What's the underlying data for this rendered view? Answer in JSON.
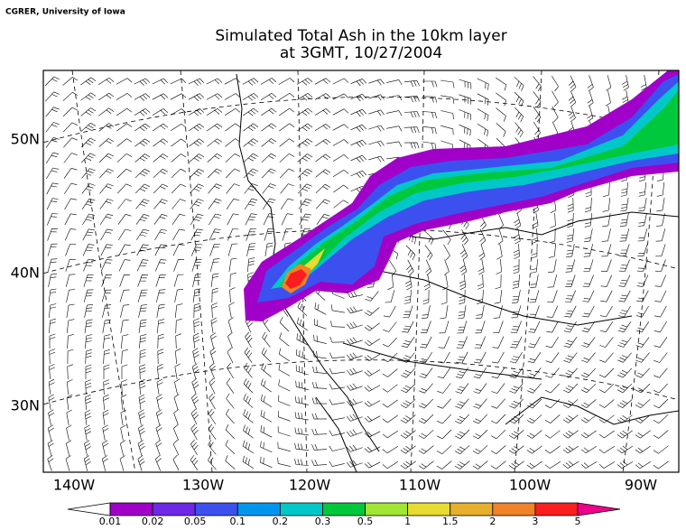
{
  "header": {
    "credit": "CGRER, University of Iowa",
    "title_line1": "Simulated Total Ash in the 10km layer",
    "title_line2": "at 3GMT, 10/27/2004"
  },
  "map": {
    "lat_labels": [
      "50N",
      "40N",
      "30N"
    ],
    "lon_labels": [
      "140W",
      "130W",
      "120W",
      "110W",
      "100W",
      "90W"
    ]
  },
  "colorbar": {
    "labels": [
      0.01,
      0.02,
      0.05,
      0.1,
      0.2,
      0.3,
      0.5,
      1,
      1.5,
      2,
      3,
      5
    ],
    "colors": [
      "#ffffff",
      "#a000c8",
      "#6e28e6",
      "#3c50f0",
      "#0096f0",
      "#00c8c8",
      "#00c83c",
      "#a0e632",
      "#e6dc32",
      "#e6af2d",
      "#f08228",
      "#fa1e1e",
      "#f0008c"
    ]
  }
}
